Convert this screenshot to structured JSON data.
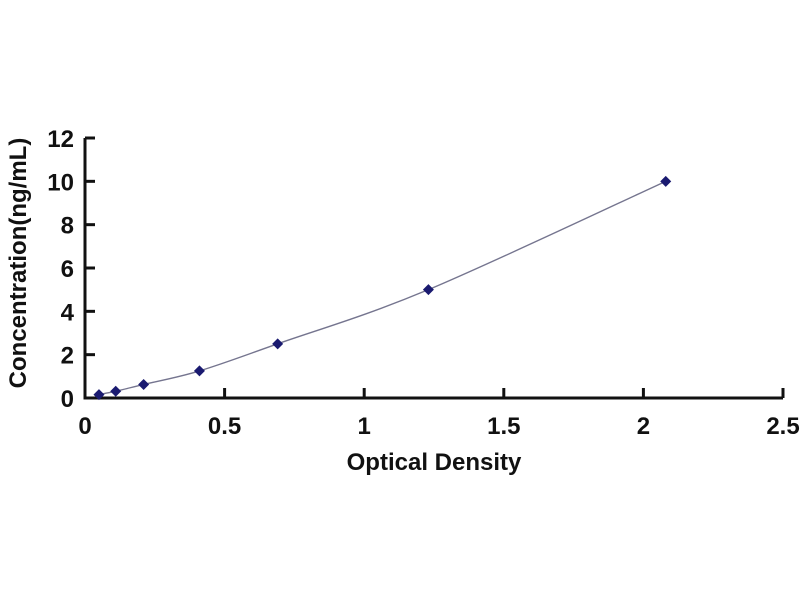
{
  "chart_data": {
    "type": "line",
    "title": "",
    "xlabel": "Optical Density",
    "ylabel": "Concentration(ng/mL)",
    "xlim": [
      0,
      2.5
    ],
    "ylim": [
      0,
      12
    ],
    "xticks": [
      0,
      0.5,
      1,
      1.5,
      2,
      2.5
    ],
    "yticks": [
      0,
      2,
      4,
      6,
      8,
      10,
      12
    ],
    "grid": false,
    "legend": false,
    "background_color": "#ffffff",
    "axis_color": "#111111",
    "series": [
      {
        "name": "standard-curve",
        "marker": "diamond",
        "line_color": "#75758f",
        "marker_color": "#1a1a70",
        "x": [
          0.05,
          0.11,
          0.21,
          0.41,
          0.69,
          1.23,
          2.08
        ],
        "y": [
          0.156,
          0.312,
          0.625,
          1.25,
          2.5,
          5.0,
          10.0
        ]
      }
    ]
  }
}
